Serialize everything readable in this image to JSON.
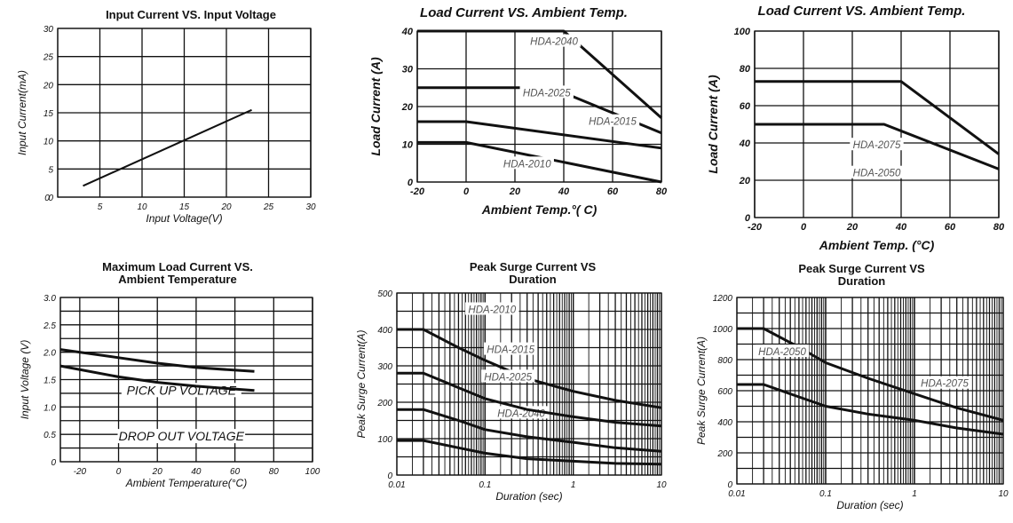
{
  "chart_data": [
    {
      "id": "c1",
      "type": "line",
      "title": "Input Current VS. Input Voltage",
      "xlabel": "Input  Voltage(V)",
      "ylabel": "Input Current(mA)",
      "xlim": [
        0,
        30
      ],
      "ylim": [
        0,
        30
      ],
      "xticks": [
        "5",
        "10",
        "15",
        "20",
        "25",
        "30"
      ],
      "yticks": [
        "0",
        "5",
        "10",
        "15",
        "20",
        "25",
        "30"
      ],
      "x_tick_values": [
        5,
        10,
        15,
        20,
        25,
        30
      ],
      "y_tick_values": [
        0,
        5,
        10,
        15,
        20,
        25,
        30
      ],
      "x_origin_label": "0",
      "grid": true,
      "series": [
        {
          "x": [
            3,
            23
          ],
          "y": [
            2,
            15.5
          ]
        }
      ]
    },
    {
      "id": "c2",
      "type": "line",
      "title": "Load Current VS.  Ambient Temp.",
      "xlabel": "Ambient Temp.°( C)",
      "ylabel": "Load Current (A)",
      "xlim": [
        -20,
        80
      ],
      "ylim": [
        0,
        40
      ],
      "xticks": [
        "-20",
        "0",
        "20",
        "40",
        "60",
        "80"
      ],
      "yticks": [
        "0",
        "10",
        "20",
        "30",
        "40"
      ],
      "x_tick_values": [
        -20,
        0,
        20,
        40,
        60,
        80
      ],
      "y_tick_values": [
        0,
        10,
        20,
        30,
        40
      ],
      "grid": true,
      "series": [
        {
          "name": "HDA-2040",
          "x": [
            -20,
            40,
            80
          ],
          "y": [
            40,
            40,
            17
          ]
        },
        {
          "name": "HDA-2025",
          "x": [
            -20,
            35,
            80
          ],
          "y": [
            25,
            25,
            13
          ]
        },
        {
          "name": "HDA-2015",
          "x": [
            -20,
            0,
            80
          ],
          "y": [
            16,
            16,
            9
          ]
        },
        {
          "name": "HDA-2010",
          "x": [
            -20,
            0,
            80
          ],
          "y": [
            10.5,
            10.5,
            0
          ]
        }
      ]
    },
    {
      "id": "c3",
      "type": "line",
      "title": "Load Current VS.  Ambient Temp.",
      "xlabel": "Ambient Temp. (°C)",
      "ylabel": "Load Current (A)",
      "xlim": [
        -20,
        80
      ],
      "ylim": [
        0,
        100
      ],
      "xticks": [
        "-20",
        "0",
        "20",
        "40",
        "60",
        "80"
      ],
      "yticks": [
        "0",
        "20",
        "40",
        "60",
        "80",
        "100"
      ],
      "x_tick_values": [
        -20,
        0,
        20,
        40,
        60,
        80
      ],
      "y_tick_values": [
        0,
        20,
        40,
        60,
        80,
        100
      ],
      "grid": true,
      "series": [
        {
          "name": "HDA-2075",
          "x": [
            -20,
            40,
            80
          ],
          "y": [
            73,
            73,
            34
          ]
        },
        {
          "name": "HDA-2050",
          "x": [
            -20,
            33,
            80
          ],
          "y": [
            50,
            50,
            26
          ]
        }
      ]
    },
    {
      "id": "c4",
      "type": "line",
      "title": "Maximum Load Current VS.\nAmbient  Temperature",
      "xlabel": "Ambient Temperature(°C)",
      "ylabel": "Input Voltage (V)",
      "xlim": [
        -30,
        100
      ],
      "ylim": [
        0,
        3.0
      ],
      "xticks": [
        "-20",
        "0",
        "20",
        "40",
        "60",
        "80",
        "100"
      ],
      "yticks": [
        "0",
        "0.5",
        "1.0",
        "1.5",
        "2.0",
        "2.5",
        "3.0"
      ],
      "x_tick_values": [
        -20,
        0,
        20,
        40,
        60,
        80,
        100
      ],
      "y_tick_values": [
        0,
        0.5,
        1.0,
        1.5,
        2.0,
        2.5,
        3.0
      ],
      "grid": true,
      "series": [
        {
          "name": "PICK UP VOLTAGE",
          "x": [
            -30,
            0,
            20,
            40,
            70
          ],
          "y": [
            2.05,
            1.9,
            1.8,
            1.72,
            1.65
          ]
        },
        {
          "name": "DROP OUT VOLTAGE",
          "x": [
            -30,
            0,
            20,
            40,
            70
          ],
          "y": [
            1.75,
            1.55,
            1.45,
            1.38,
            1.3
          ]
        }
      ]
    },
    {
      "id": "c5",
      "type": "line",
      "title": "Peak Surge Current VS\nDuration",
      "xlabel": "Duration (sec)",
      "ylabel": "Peak Surge Current(A)",
      "xscale": "log",
      "xlim": [
        0.01,
        10
      ],
      "ylim": [
        0,
        500
      ],
      "xticks": [
        "0.01",
        "0.1",
        "1",
        "10"
      ],
      "yticks": [
        "0",
        "100",
        "200",
        "300",
        "400",
        "500"
      ],
      "x_tick_values": [
        0.01,
        0.1,
        1,
        10
      ],
      "y_tick_values": [
        0,
        100,
        200,
        300,
        400,
        500
      ],
      "grid": true,
      "series": [
        {
          "name": "HDA-2040",
          "x": [
            0.01,
            0.02,
            0.05,
            0.1,
            0.3,
            1,
            3,
            10
          ],
          "y": [
            400,
            400,
            350,
            315,
            265,
            230,
            205,
            185
          ]
        },
        {
          "name": "HDA-2025",
          "x": [
            0.01,
            0.02,
            0.05,
            0.1,
            0.3,
            1,
            3,
            10
          ],
          "y": [
            280,
            280,
            240,
            210,
            180,
            160,
            145,
            135
          ]
        },
        {
          "name": "HDA-2015",
          "x": [
            0.01,
            0.02,
            0.05,
            0.1,
            0.3,
            1,
            3,
            10
          ],
          "y": [
            180,
            180,
            150,
            125,
            105,
            90,
            75,
            65
          ]
        },
        {
          "name": "HDA-2010",
          "x": [
            0.01,
            0.02,
            0.05,
            0.1,
            0.3,
            1,
            3,
            10
          ],
          "y": [
            95,
            95,
            75,
            60,
            45,
            38,
            32,
            30
          ]
        }
      ]
    },
    {
      "id": "c6",
      "type": "line",
      "title": "Peak Surge Current VS\nDuration",
      "xlabel": "Duration (sec)",
      "ylabel": "Peak Surge Current(A)",
      "xscale": "log",
      "xlim": [
        0.01,
        10
      ],
      "ylim": [
        0,
        1200
      ],
      "xticks": [
        "0.01",
        "0.1",
        "1",
        "10"
      ],
      "yticks": [
        "0",
        "200",
        "400",
        "600",
        "800",
        "1000",
        "1200"
      ],
      "x_tick_values": [
        0.01,
        0.1,
        1,
        10
      ],
      "y_tick_values": [
        0,
        200,
        400,
        600,
        800,
        1000,
        1200
      ],
      "grid": true,
      "series": [
        {
          "name": "HDA-2075",
          "x": [
            0.01,
            0.02,
            0.05,
            0.1,
            0.3,
            1,
            3,
            10
          ],
          "y": [
            1000,
            1000,
            880,
            780,
            680,
            580,
            490,
            410
          ]
        },
        {
          "name": "HDA-2050",
          "x": [
            0.01,
            0.02,
            0.05,
            0.1,
            0.3,
            1,
            3,
            10
          ],
          "y": [
            640,
            640,
            560,
            500,
            450,
            410,
            360,
            320
          ]
        }
      ]
    }
  ]
}
